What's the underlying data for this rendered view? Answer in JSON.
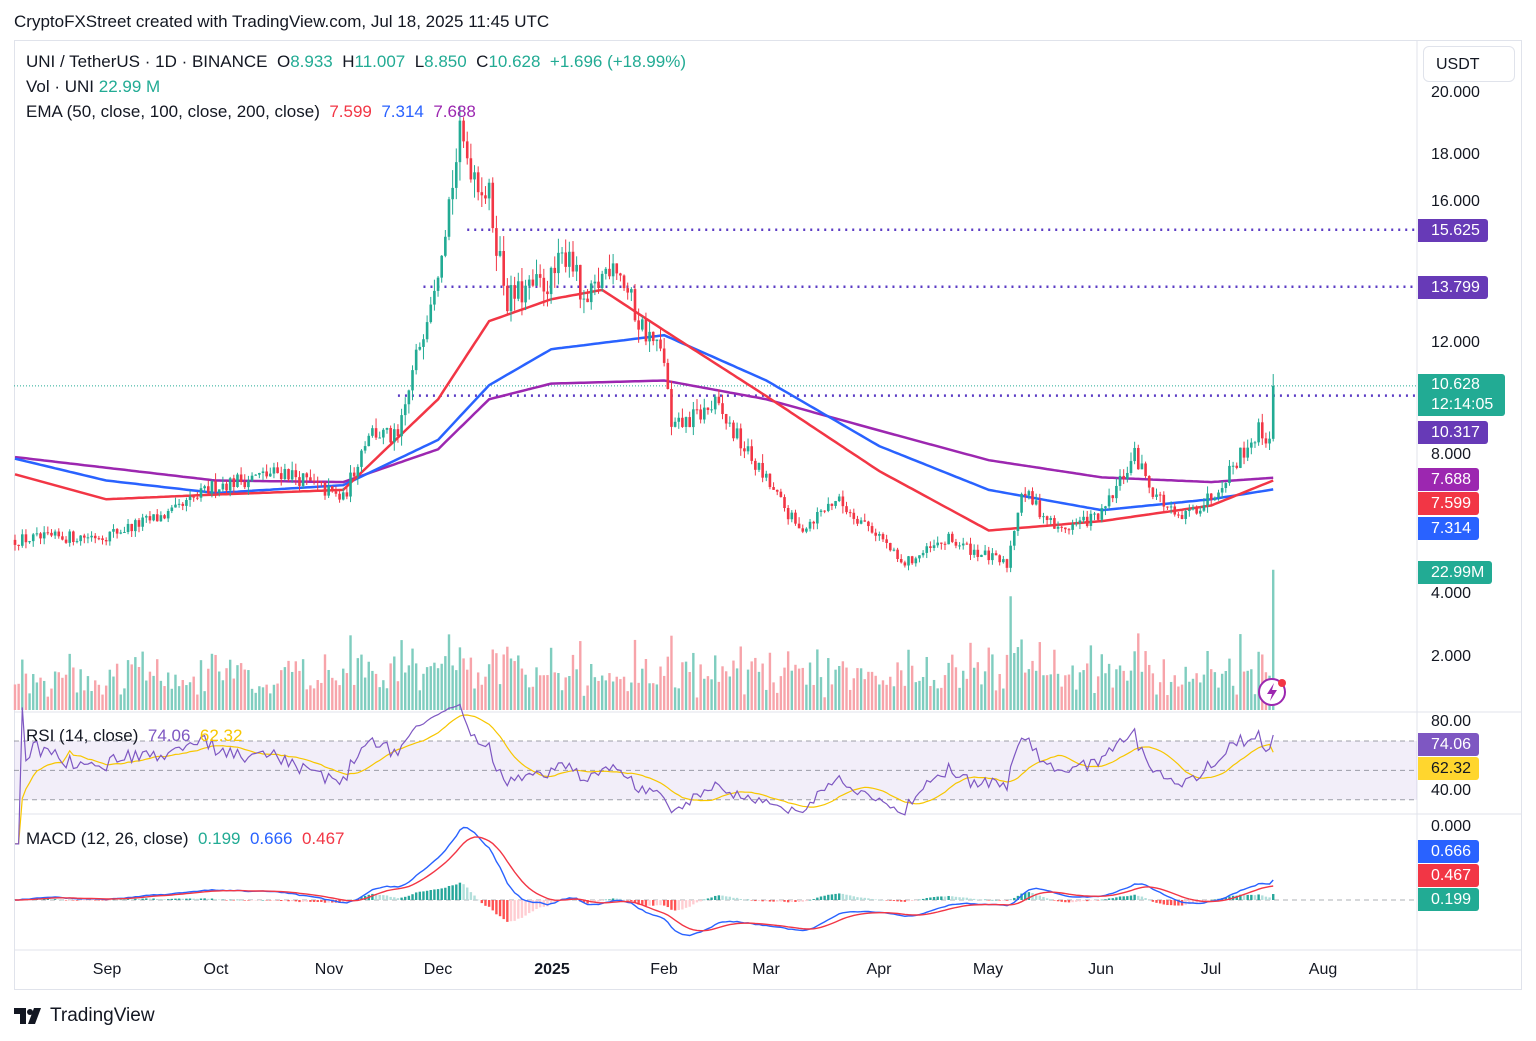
{
  "credit": "CryptoFXStreet created with TradingView.com, Jul 18, 2025 11:45 UTC",
  "legend": {
    "symbol": "UNI / TetherUS · 1D · BINANCE",
    "o_label": "O",
    "o": "8.933",
    "h_label": "H",
    "h": "11.007",
    "l_label": "L",
    "l": "8.850",
    "c_label": "C",
    "c": "10.628",
    "change": "+1.696 (+18.99%)",
    "vol_label": "Vol · UNI",
    "vol": "22.99 M",
    "ema_label": "EMA (50, close, 100, close, 200, close)",
    "ema50": "7.599",
    "ema100": "7.314",
    "ema200": "7.688",
    "rsi_label": "RSI (14, close)",
    "rsi": "74.06",
    "rsi_ma": "62.32",
    "macd_label": "MACD (12, 26, close)",
    "macd_hist": "0.199",
    "macd": "0.666",
    "macd_signal": "0.467"
  },
  "currency": "USDT",
  "price_axis": [
    "20.000",
    "18.000",
    "16.000",
    "12.000",
    "8.000",
    "4.000",
    "2.000"
  ],
  "rsi_axis": [
    "80.00",
    "40.00"
  ],
  "macd_axis": [
    "0.000"
  ],
  "tags": {
    "res1": "15.625",
    "res2": "13.799",
    "last": "10.628",
    "countdown": "12:14:05",
    "sup": "10.317",
    "ema200": "7.688",
    "ema50": "7.599",
    "ema100": "7.314",
    "vol": "22.99M",
    "rsi": "74.06",
    "rsi_ma": "62.32",
    "macd": "0.666",
    "signal": "0.467",
    "hist": "0.199"
  },
  "time_axis": [
    "Sep",
    "Oct",
    "Nov",
    "Dec",
    "2025",
    "Feb",
    "Mar",
    "Apr",
    "May",
    "Jun",
    "Jul",
    "Aug"
  ],
  "footer": "TradingView",
  "colors": {
    "up": "#22ab94",
    "down": "#f23645",
    "ema50": "#f23645",
    "ema100": "#2962ff",
    "ema200": "#9c27b0",
    "level": "#5b3cc4",
    "rsi": "#7e57c2",
    "rsi_ma": "#f7c600"
  },
  "chart_data": {
    "type": "candlestick",
    "title": "UNI / TetherUS · 1D · BINANCE",
    "start_date": "2024-08-07",
    "end_date": "2025-07-18",
    "ylim": [
      2,
      20
    ],
    "last_candle": {
      "open": 8.933,
      "high": 11.007,
      "low": 8.85,
      "close": 10.628,
      "volume_m": 22.99
    },
    "close_path": [
      [
        "2024-08-07",
        5.7
      ],
      [
        "2024-09-01",
        5.85
      ],
      [
        "2024-09-20",
        6.6
      ],
      [
        "2024-10-01",
        7.45
      ],
      [
        "2024-10-20",
        7.9
      ],
      [
        "2024-11-05",
        7.0
      ],
      [
        "2024-11-12",
        9.2
      ],
      [
        "2024-11-20",
        8.9
      ],
      [
        "2024-11-25",
        11.5
      ],
      [
        "2024-12-01",
        14.6
      ],
      [
        "2024-12-07",
        18.5
      ],
      [
        "2024-12-15",
        16.6
      ],
      [
        "2024-12-20",
        13.4
      ],
      [
        "2025-01-01",
        14.0
      ],
      [
        "2025-01-06",
        15.1
      ],
      [
        "2025-01-10",
        13.0
      ],
      [
        "2025-01-18",
        14.8
      ],
      [
        "2025-01-25",
        12.7
      ],
      [
        "2025-02-01",
        11.5
      ],
      [
        "2025-02-03",
        9.2
      ],
      [
        "2025-02-15",
        10.0
      ],
      [
        "2025-03-01",
        7.6
      ],
      [
        "2025-03-10",
        6.0
      ],
      [
        "2025-03-20",
        7.0
      ],
      [
        "2025-04-01",
        5.85
      ],
      [
        "2025-04-07",
        4.9
      ],
      [
        "2025-04-20",
        5.7
      ],
      [
        "2025-05-06",
        4.9
      ],
      [
        "2025-05-10",
        7.3
      ],
      [
        "2025-05-20",
        6.0
      ],
      [
        "2025-06-01",
        6.5
      ],
      [
        "2025-06-10",
        8.4
      ],
      [
        "2025-06-15",
        7.3
      ],
      [
        "2025-06-22",
        6.3
      ],
      [
        "2025-07-01",
        7.1
      ],
      [
        "2025-07-10",
        8.6
      ],
      [
        "2025-07-14",
        9.2
      ],
      [
        "2025-07-17",
        8.933
      ]
    ],
    "ema50": [
      [
        "2024-08-07",
        7.8
      ],
      [
        "2024-09-01",
        7.0
      ],
      [
        "2024-10-01",
        7.15
      ],
      [
        "2024-11-05",
        7.3
      ],
      [
        "2024-12-01",
        10.2
      ],
      [
        "2024-12-15",
        12.7
      ],
      [
        "2025-01-01",
        13.4
      ],
      [
        "2025-01-15",
        13.7
      ],
      [
        "2025-02-01",
        12.4
      ],
      [
        "2025-03-01",
        10.3
      ],
      [
        "2025-04-01",
        7.9
      ],
      [
        "2025-05-01",
        6.0
      ],
      [
        "2025-06-01",
        6.3
      ],
      [
        "2025-07-01",
        6.8
      ],
      [
        "2025-07-18",
        7.599
      ]
    ],
    "ema100": [
      [
        "2024-08-07",
        8.3
      ],
      [
        "2024-09-01",
        7.6
      ],
      [
        "2024-10-01",
        7.2
      ],
      [
        "2024-11-05",
        7.45
      ],
      [
        "2024-12-01",
        8.9
      ],
      [
        "2024-12-15",
        10.65
      ],
      [
        "2025-01-01",
        11.8
      ],
      [
        "2025-02-01",
        12.25
      ],
      [
        "2025-03-01",
        10.8
      ],
      [
        "2025-04-01",
        8.7
      ],
      [
        "2025-05-01",
        7.3
      ],
      [
        "2025-06-01",
        6.65
      ],
      [
        "2025-07-01",
        7.0
      ],
      [
        "2025-07-18",
        7.314
      ]
    ],
    "ema200": [
      [
        "2024-08-07",
        8.35
      ],
      [
        "2024-10-01",
        7.6
      ],
      [
        "2024-11-05",
        7.55
      ],
      [
        "2024-12-01",
        8.6
      ],
      [
        "2024-12-15",
        10.2
      ],
      [
        "2025-01-01",
        10.7
      ],
      [
        "2025-02-01",
        10.8
      ],
      [
        "2025-03-01",
        10.2
      ],
      [
        "2025-04-01",
        9.2
      ],
      [
        "2025-05-01",
        8.25
      ],
      [
        "2025-06-01",
        7.7
      ],
      [
        "2025-07-01",
        7.55
      ],
      [
        "2025-07-18",
        7.688
      ]
    ],
    "levels": [
      {
        "value": 15.625,
        "from": "2024-12-09"
      },
      {
        "value": 13.799,
        "from": "2024-11-27"
      },
      {
        "value": 10.317,
        "from": "2024-11-20"
      }
    ],
    "rsi": {
      "period": 14,
      "last": 74.06,
      "ma_last": 62.32,
      "bands": [
        30,
        70
      ]
    },
    "macd": {
      "fast": 12,
      "slow": 26,
      "macd": 0.666,
      "signal": 0.467,
      "hist": 0.199
    }
  }
}
